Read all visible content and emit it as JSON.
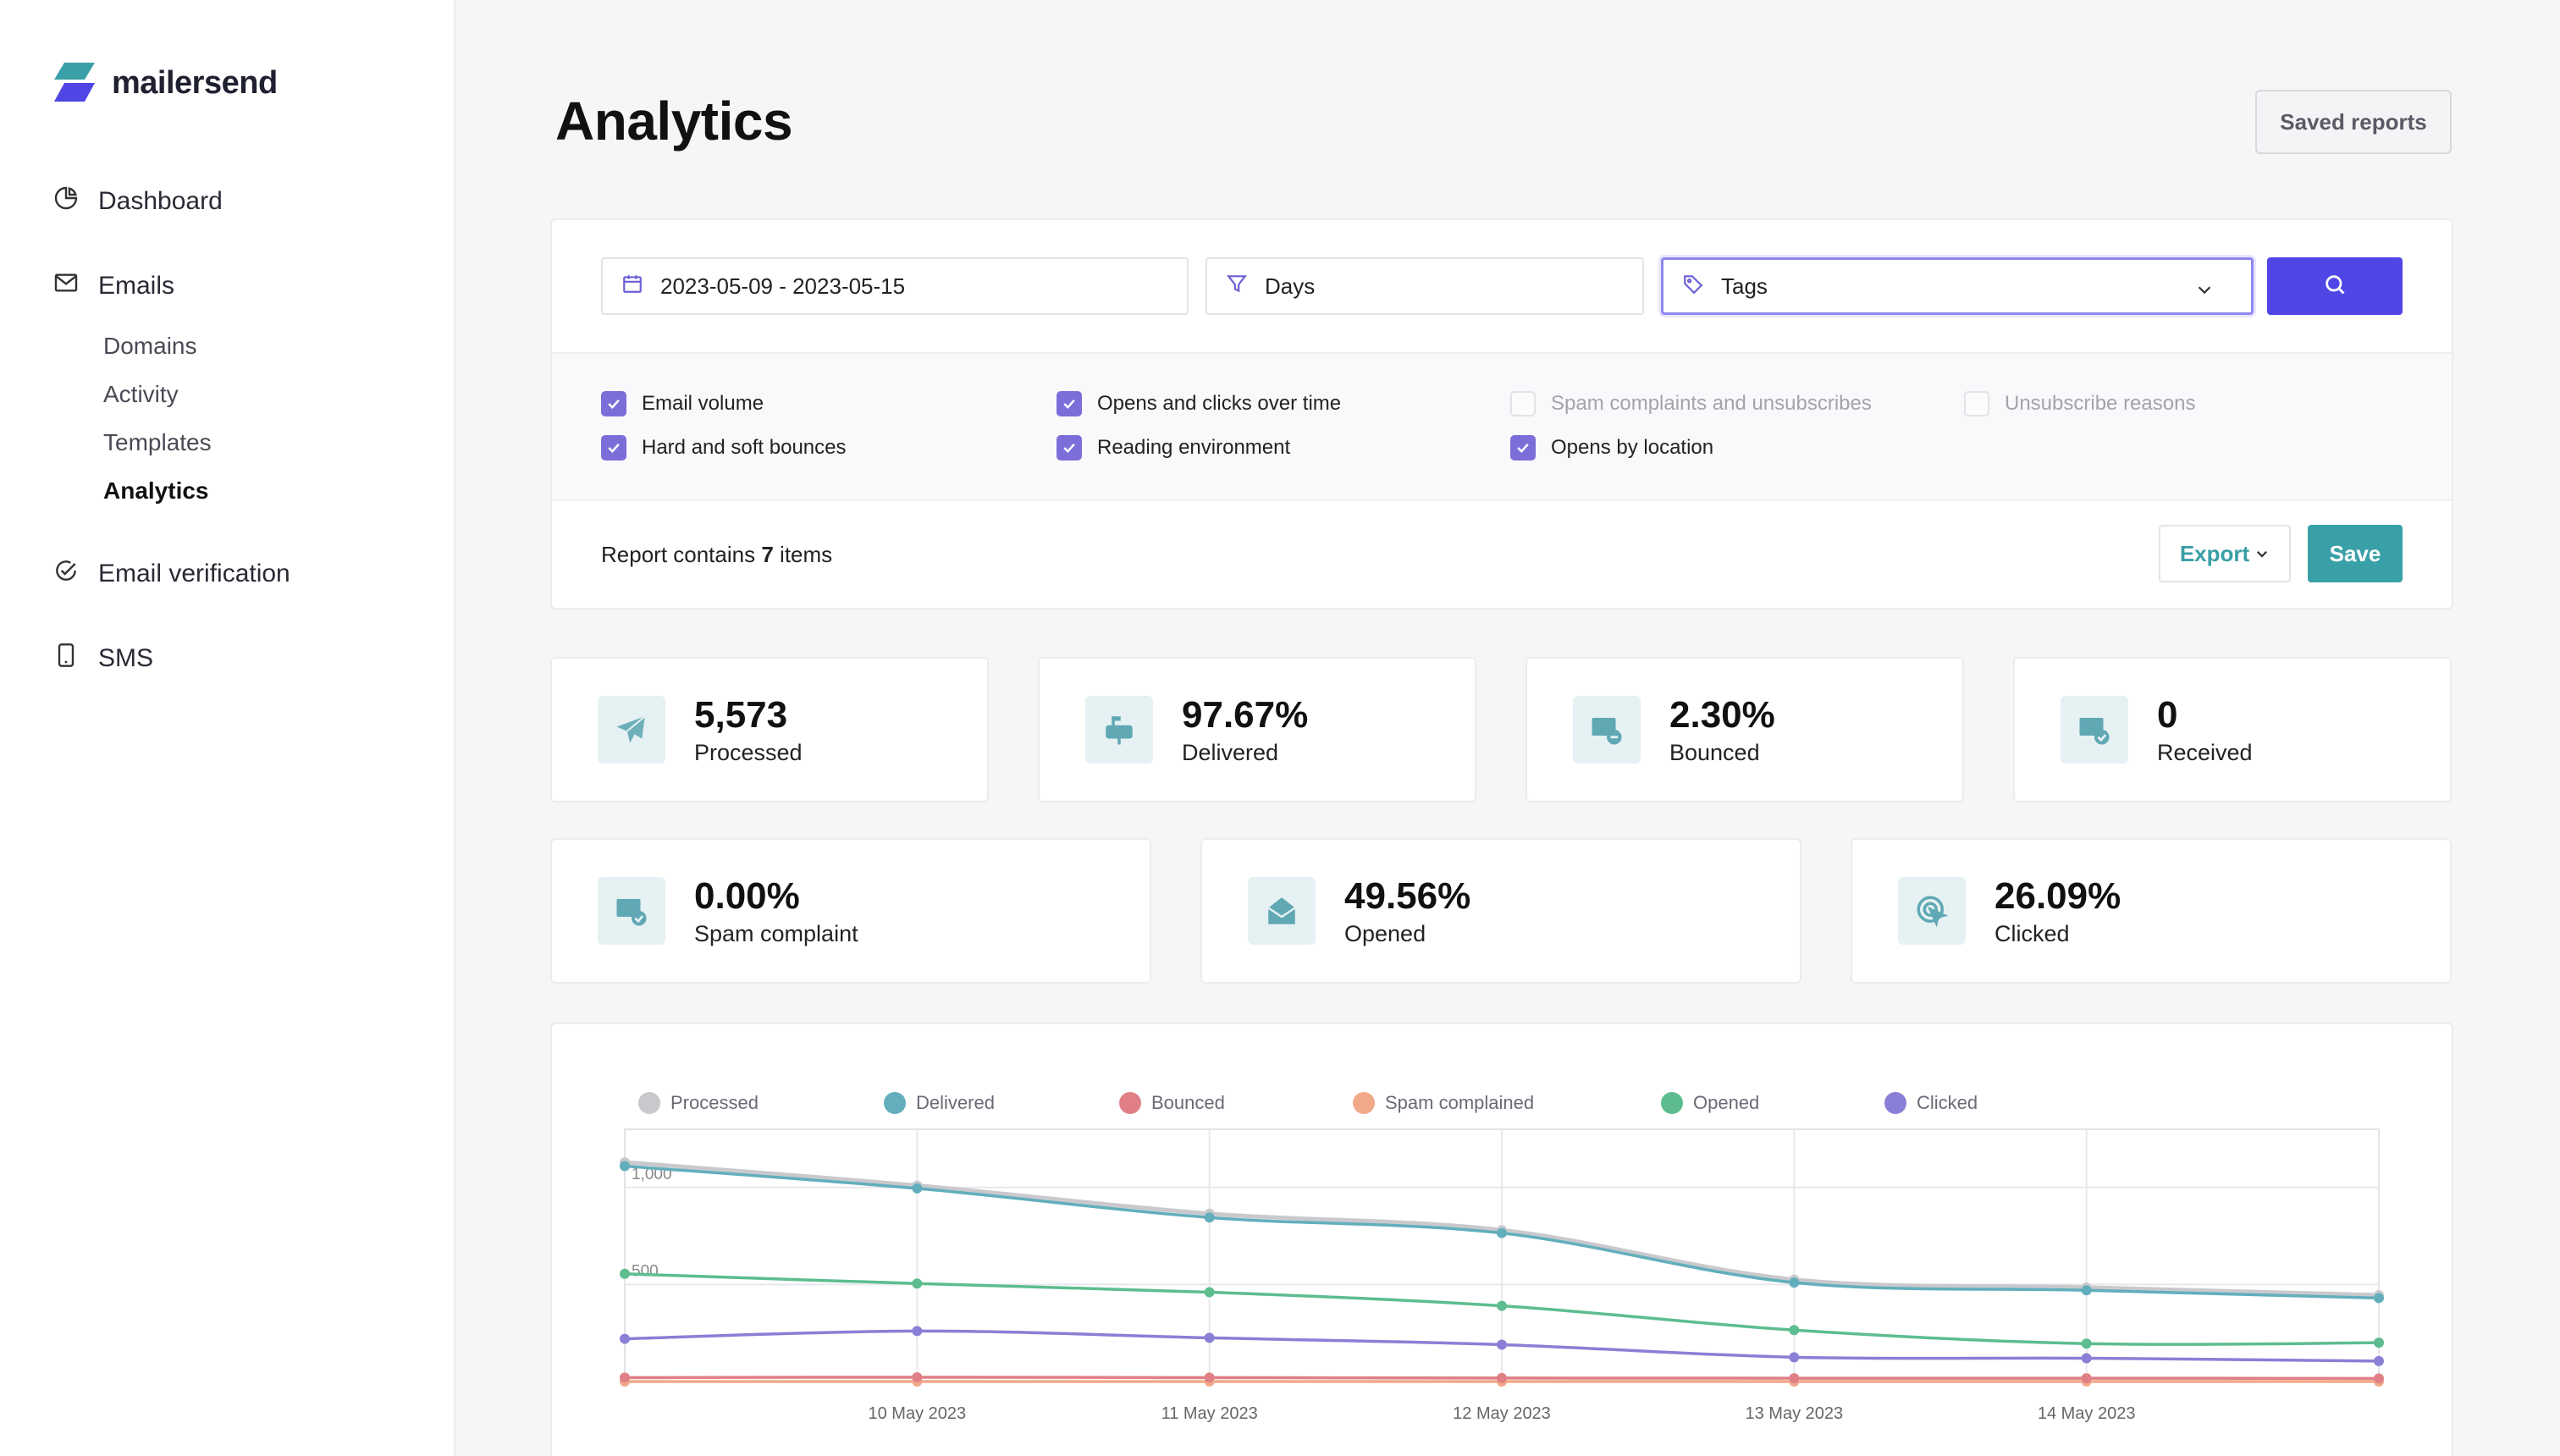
{
  "brand": {
    "name": "mailersend"
  },
  "sidebar": {
    "items": [
      {
        "label": "Dashboard",
        "icon": "pie-chart-icon"
      },
      {
        "label": "Emails",
        "icon": "mail-icon"
      },
      {
        "label": "Email verification",
        "icon": "check-circle-icon"
      },
      {
        "label": "SMS",
        "icon": "phone-icon"
      }
    ],
    "email_subitems": [
      {
        "label": "Domains"
      },
      {
        "label": "Activity"
      },
      {
        "label": "Templates"
      },
      {
        "label": "Analytics",
        "active": true
      }
    ]
  },
  "header": {
    "title": "Analytics",
    "saved_reports_label": "Saved reports"
  },
  "filters": {
    "date_range": "2023-05-09 - 2023-05-15",
    "group_by": "Days",
    "tags_placeholder": "Tags",
    "options": [
      {
        "label": "Email volume",
        "checked": true
      },
      {
        "label": "Hard and soft bounces",
        "checked": true
      },
      {
        "label": "Opens and clicks over time",
        "checked": true
      },
      {
        "label": "Reading environment",
        "checked": true
      },
      {
        "label": "Spam complaints and unsubscribes",
        "checked": false
      },
      {
        "label": "Opens by location",
        "checked": true
      },
      {
        "label": "Unsubscribe reasons",
        "checked": false
      }
    ],
    "report_prefix": "Report contains",
    "report_count": "7",
    "report_suffix": "items",
    "export_label": "Export",
    "save_label": "Save"
  },
  "stats": [
    {
      "value": "5,573",
      "label": "Processed",
      "icon": "paper-plane-icon"
    },
    {
      "value": "97.67%",
      "label": "Delivered",
      "icon": "mailbox-icon"
    },
    {
      "value": "2.30%",
      "label": "Bounced",
      "icon": "mail-minus-icon"
    },
    {
      "value": "0",
      "label": "Received",
      "icon": "mail-check-icon"
    },
    {
      "value": "0.00%",
      "label": "Spam complaint",
      "icon": "mail-shield-icon"
    },
    {
      "value": "49.56%",
      "label": "Opened",
      "icon": "open-envelope-icon"
    },
    {
      "value": "26.09%",
      "label": "Clicked",
      "icon": "cursor-click-icon"
    }
  ],
  "colors": {
    "processed": "#c9c9cd",
    "delivered": "#62aebd",
    "bounced": "#e07f85",
    "spam": "#f2a98a",
    "opened": "#5dbd8f",
    "clicked": "#8a7fd6",
    "accent": "#4f46e5",
    "teal": "#3aa0a8"
  },
  "chart_data": {
    "type": "line",
    "x": [
      "",
      "10 May 2023",
      "11 May 2023",
      "12 May 2023",
      "13 May 2023",
      "14 May 2023",
      ""
    ],
    "ylim": [
      0,
      1300
    ],
    "yticks": [
      500,
      1000
    ],
    "ytick_labels": [
      "500",
      "1,000"
    ],
    "grid": true,
    "legend_position": "top",
    "series": [
      {
        "name": "Processed",
        "color": "#c9c9cd",
        "values": [
          1130,
          1010,
          865,
          780,
          525,
          485,
          445
        ]
      },
      {
        "name": "Delivered",
        "color": "#62aebd",
        "values": [
          1110,
          995,
          845,
          765,
          510,
          470,
          430
        ]
      },
      {
        "name": "Bounced",
        "color": "#e07f85",
        "values": [
          20,
          22,
          20,
          18,
          17,
          17,
          16
        ]
      },
      {
        "name": "Spam complained",
        "color": "#f2a98a",
        "values": [
          0,
          0,
          0,
          0,
          0,
          0,
          0
        ]
      },
      {
        "name": "Opened",
        "color": "#5dbd8f",
        "values": [
          555,
          505,
          460,
          390,
          265,
          195,
          200
        ]
      },
      {
        "name": "Clicked",
        "color": "#8a7fd6",
        "values": [
          220,
          260,
          225,
          190,
          125,
          120,
          105
        ]
      }
    ]
  }
}
